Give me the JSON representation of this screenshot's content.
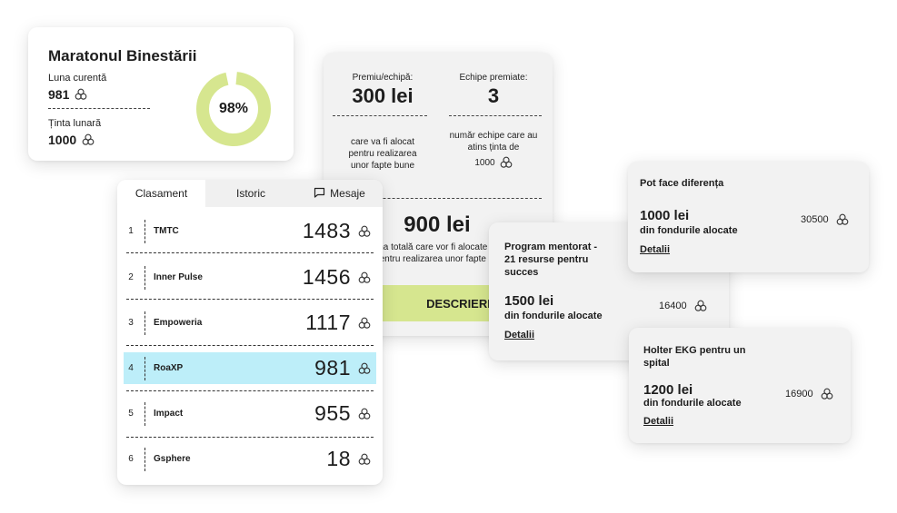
{
  "marathon": {
    "title": "Maratonul Binestării",
    "current_label": "Luna curentă",
    "current_value": "981",
    "target_label": "Ținta lunară",
    "target_value": "1000",
    "percent_text": "98%",
    "percent": 98,
    "ring_color": "#d6e68f"
  },
  "prize": {
    "per_team_label": "Premiu/echipă:",
    "per_team_value": "300 lei",
    "teams_label": "Echipe premiate:",
    "teams_value": "3",
    "per_team_desc": [
      "care va fi alocat",
      "pentru realizarea",
      "unor fapte bune"
    ],
    "teams_desc": [
      "număr echipe care au",
      "atins ținta de"
    ],
    "teams_target": "1000",
    "total_value": "900 lei",
    "total_desc_1": "Suma totală care vor fi alocate la final,",
    "total_desc_2": "pentru realizarea unor fapte bune",
    "button_label": "DESCRIERE",
    "button_color": "#d6e68f"
  },
  "tabs": [
    {
      "label": "Clasament",
      "active": true
    },
    {
      "label": "Istoric",
      "active": false
    },
    {
      "label": "Mesaje",
      "active": false,
      "icon": "message-icon"
    }
  ],
  "leaderboard": [
    {
      "rank": "1",
      "name": "TMTC",
      "score": "1483"
    },
    {
      "rank": "2",
      "name": "Inner Pulse",
      "score": "1456"
    },
    {
      "rank": "3",
      "name": "Empoweria",
      "score": "1117"
    },
    {
      "rank": "4",
      "name": "RoaXP",
      "score": "981",
      "highlight": true
    },
    {
      "rank": "5",
      "name": "Impact",
      "score": "955"
    },
    {
      "rank": "6",
      "name": "Gsphere",
      "score": "18"
    }
  ],
  "highlight_color": "#bdeef9",
  "resources": [
    {
      "title_lines": [
        "Program mentorat -",
        "21 resurse pentru",
        "succes"
      ],
      "amount": "1500 lei",
      "sub": "din fondurile alocate",
      "points": "16400",
      "link": "Detalii"
    },
    {
      "title_lines": [
        "Pot face diferența"
      ],
      "amount": "1000 lei",
      "sub": "din fondurile alocate",
      "points": "30500",
      "link": "Detalii"
    },
    {
      "title_lines": [
        "Holter EKG pentru un",
        "spital"
      ],
      "amount": "1200 lei",
      "sub": "din fondurile alocate",
      "points": "16900",
      "link": "Detalii"
    }
  ],
  "points_icon": "triple-circle-icon"
}
